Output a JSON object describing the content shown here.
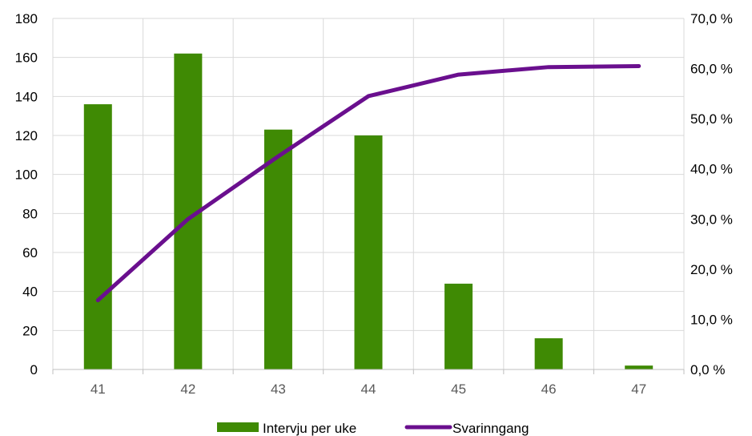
{
  "chart_data": {
    "type": "bar",
    "categories": [
      "41",
      "42",
      "43",
      "44",
      "45",
      "46",
      "47"
    ],
    "series": [
      {
        "name": "Intervju per uke",
        "type": "bar",
        "axis": "left",
        "color": "#3F8A04",
        "values": [
          136,
          162,
          123,
          120,
          44,
          16,
          2
        ]
      },
      {
        "name": "Svarinngang",
        "type": "line",
        "axis": "right",
        "color": "#6A0F8E",
        "values": [
          13.8,
          30.0,
          42.5,
          54.5,
          58.8,
          60.3,
          60.5
        ]
      }
    ],
    "y_left": {
      "ylim": [
        0,
        180
      ],
      "ticks": [
        "0",
        "20",
        "40",
        "60",
        "80",
        "100",
        "120",
        "140",
        "160",
        "180"
      ]
    },
    "y_right": {
      "ylim": [
        0,
        70
      ],
      "ticks": [
        "0,0 %",
        "10,0 %",
        "20,0 %",
        "30,0 %",
        "40,0 %",
        "50,0 %",
        "60,0 %",
        "70,0 %"
      ]
    },
    "grid": true,
    "legend": "bottom"
  }
}
